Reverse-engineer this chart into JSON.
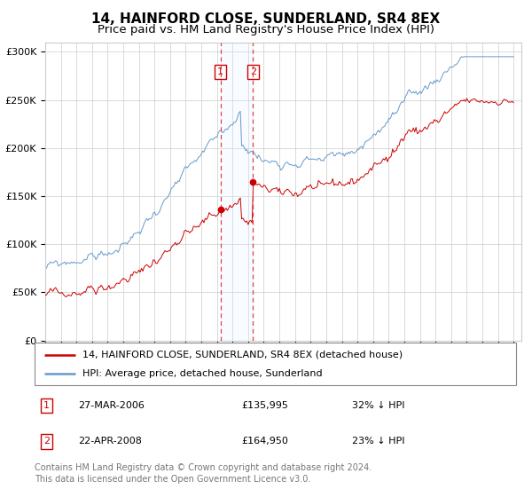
{
  "title": "14, HAINFORD CLOSE, SUNDERLAND, SR4 8EX",
  "subtitle": "Price paid vs. HM Land Registry's House Price Index (HPI)",
  "ylim": [
    0,
    310000
  ],
  "yticks": [
    0,
    50000,
    100000,
    150000,
    200000,
    250000,
    300000
  ],
  "ytick_labels": [
    "£0",
    "£50K",
    "£100K",
    "£150K",
    "£200K",
    "£250K",
    "£300K"
  ],
  "sale1_date_num": 2006.23,
  "sale1_price": 135995,
  "sale2_date_num": 2008.31,
  "sale2_price": 164950,
  "legend_property": "14, HAINFORD CLOSE, SUNDERLAND, SR4 8EX (detached house)",
  "legend_hpi": "HPI: Average price, detached house, Sunderland",
  "table_row1": [
    "1",
    "27-MAR-2006",
    "£135,995",
    "32% ↓ HPI"
  ],
  "table_row2": [
    "2",
    "22-APR-2008",
    "£164,950",
    "23% ↓ HPI"
  ],
  "footer": "Contains HM Land Registry data © Crown copyright and database right 2024.\nThis data is licensed under the Open Government Licence v3.0.",
  "property_color": "#cc0000",
  "hpi_color": "#6699cc",
  "vline_color": "#dd4444",
  "shade_color": "#ddeeff",
  "grid_color": "#cccccc",
  "box_color": "#cc0000",
  "background_color": "#ffffff",
  "title_fontsize": 11,
  "subtitle_fontsize": 9.5,
  "tick_fontsize": 8,
  "legend_fontsize": 8,
  "table_fontsize": 8,
  "footer_fontsize": 7
}
